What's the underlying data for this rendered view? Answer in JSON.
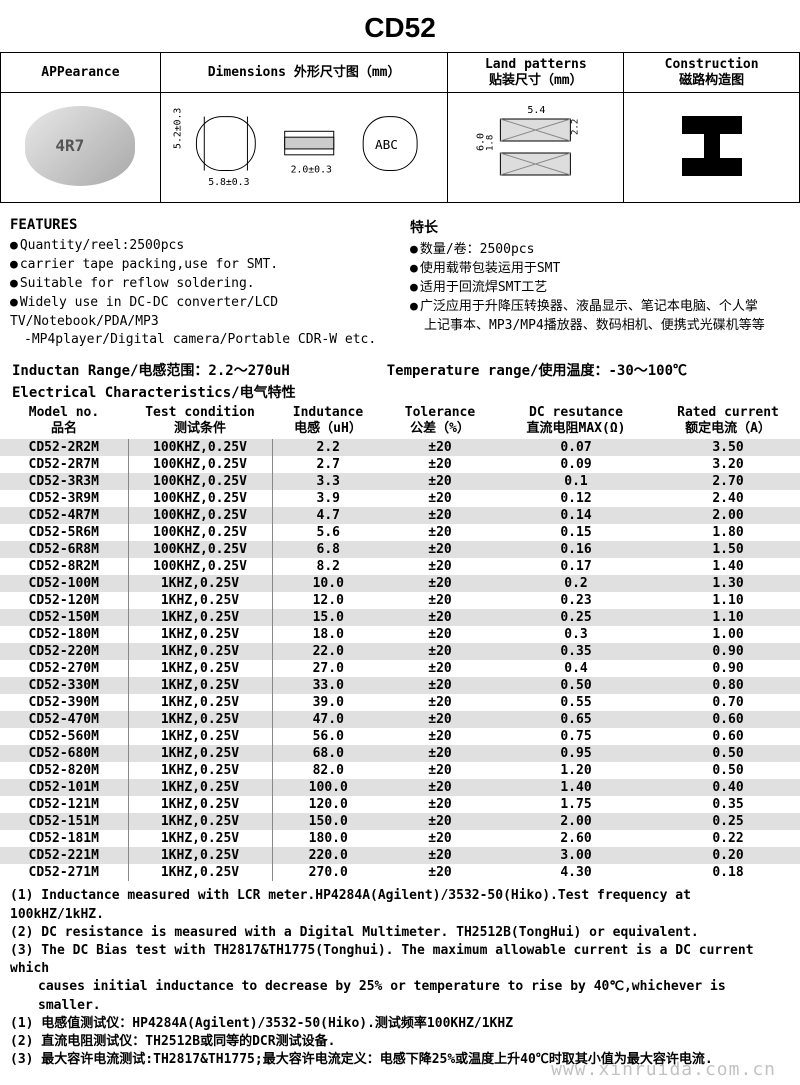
{
  "title": "CD52",
  "top_headers": {
    "appearance": "APPearance",
    "dimensions": "Dimensions 外形尺寸图（mm）",
    "land": "Land patterns\n贴装尺寸（mm）",
    "construction": "Construction\n磁路构造图"
  },
  "dimensions": {
    "h": "5.2±0.3",
    "w": "5.8±0.3",
    "t": "2.0±0.3",
    "mark": "ABC"
  },
  "land": {
    "w": "5.4",
    "h": "6.0",
    "gap": "1.8",
    "pad": "2.2"
  },
  "features": {
    "heading_en": "FEATURES",
    "heading_cn": "特长",
    "en": [
      {
        "t": "Quantity/reel:2500pcs",
        "b": true
      },
      {
        "t": "carrier tape packing,use for SMT.",
        "b": true
      },
      {
        "t": "Suitable for reflow soldering.",
        "b": true
      },
      {
        "t": "Widely use in DC-DC converter/LCD TV/Notebook/PDA/MP3",
        "b": true
      },
      {
        "t": "-MP4player/Digital camera/Portable CDR-W etc.",
        "b": false
      }
    ],
    "cn": [
      {
        "t": "数量/卷：2500pcs",
        "b": true
      },
      {
        "t": "使用载带包装运用于SMT",
        "b": true
      },
      {
        "t": "适用于回流焊SMT工艺",
        "b": true
      },
      {
        "t": "广泛应用于升降压转换器、液晶显示、笔记本电脑、个人掌",
        "b": true
      },
      {
        "t": "上记事本、MP3/MP4播放器、数码相机、便携式光碟机等等",
        "b": false
      }
    ]
  },
  "ranges": {
    "inductance": "Inductan Range/电感范围：2.2～270uH",
    "temperature": "Temperature range/使用温度：-30～100℃"
  },
  "ec_title": "Electrical Characteristics/电气特性",
  "table": {
    "headers": [
      {
        "en": "Model no.",
        "cn": "品名"
      },
      {
        "en": "Test condition",
        "cn": "测试条件"
      },
      {
        "en": "Indutance",
        "cn": "电感（uH）"
      },
      {
        "en": "Tolerance",
        "cn": "公差（%）"
      },
      {
        "en": "DC resutance",
        "cn": "直流电阻MAX(Ω)"
      },
      {
        "en": "Rated current",
        "cn": "额定电流（A）"
      }
    ],
    "rows": [
      [
        "CD52-2R2M",
        "100KHZ,0.25V",
        "2.2",
        "±20",
        "0.07",
        "3.50"
      ],
      [
        "CD52-2R7M",
        "100KHZ,0.25V",
        "2.7",
        "±20",
        "0.09",
        "3.20"
      ],
      [
        "CD52-3R3M",
        "100KHZ,0.25V",
        "3.3",
        "±20",
        "0.1",
        "2.70"
      ],
      [
        "CD52-3R9M",
        "100KHZ,0.25V",
        "3.9",
        "±20",
        "0.12",
        "2.40"
      ],
      [
        "CD52-4R7M",
        "100KHZ,0.25V",
        "4.7",
        "±20",
        "0.14",
        "2.00"
      ],
      [
        "CD52-5R6M",
        "100KHZ,0.25V",
        "5.6",
        "±20",
        "0.15",
        "1.80"
      ],
      [
        "CD52-6R8M",
        "100KHZ,0.25V",
        "6.8",
        "±20",
        "0.16",
        "1.50"
      ],
      [
        "CD52-8R2M",
        "100KHZ,0.25V",
        "8.2",
        "±20",
        "0.17",
        "1.40"
      ],
      [
        "CD52-100M",
        "1KHZ,0.25V",
        "10.0",
        "±20",
        "0.2",
        "1.30"
      ],
      [
        "CD52-120M",
        "1KHZ,0.25V",
        "12.0",
        "±20",
        "0.23",
        "1.10"
      ],
      [
        "CD52-150M",
        "1KHZ,0.25V",
        "15.0",
        "±20",
        "0.25",
        "1.10"
      ],
      [
        "CD52-180M",
        "1KHZ,0.25V",
        "18.0",
        "±20",
        "0.3",
        "1.00"
      ],
      [
        "CD52-220M",
        "1KHZ,0.25V",
        "22.0",
        "±20",
        "0.35",
        "0.90"
      ],
      [
        "CD52-270M",
        "1KHZ,0.25V",
        "27.0",
        "±20",
        "0.4",
        "0.90"
      ],
      [
        "CD52-330M",
        "1KHZ,0.25V",
        "33.0",
        "±20",
        "0.50",
        "0.80"
      ],
      [
        "CD52-390M",
        "1KHZ,0.25V",
        "39.0",
        "±20",
        "0.55",
        "0.70"
      ],
      [
        "CD52-470M",
        "1KHZ,0.25V",
        "47.0",
        "±20",
        "0.65",
        "0.60"
      ],
      [
        "CD52-560M",
        "1KHZ,0.25V",
        "56.0",
        "±20",
        "0.75",
        "0.60"
      ],
      [
        "CD52-680M",
        "1KHZ,0.25V",
        "68.0",
        "±20",
        "0.95",
        "0.50"
      ],
      [
        "CD52-820M",
        "1KHZ,0.25V",
        "82.0",
        "±20",
        "1.20",
        "0.50"
      ],
      [
        "CD52-101M",
        "1KHZ,0.25V",
        "100.0",
        "±20",
        "1.40",
        "0.40"
      ],
      [
        "CD52-121M",
        "1KHZ,0.25V",
        "120.0",
        "±20",
        "1.75",
        "0.35"
      ],
      [
        "CD52-151M",
        "1KHZ,0.25V",
        "150.0",
        "±20",
        "2.00",
        "0.25"
      ],
      [
        "CD52-181M",
        "1KHZ,0.25V",
        "180.0",
        "±20",
        "2.60",
        "0.22"
      ],
      [
        "CD52-221M",
        "1KHZ,0.25V",
        "220.0",
        "±20",
        "3.00",
        "0.20"
      ],
      [
        "CD52-271M",
        "1KHZ,0.25V",
        "270.0",
        "±20",
        "4.30",
        "0.18"
      ]
    ],
    "col_widths": [
      "16%",
      "18%",
      "14%",
      "14%",
      "20%",
      "18%"
    ],
    "stripe_even": "#e0e0e0",
    "stripe_odd": "#ffffff"
  },
  "notes": [
    {
      "t": "(1) Inductance measured with LCR meter.HP4284A(Agilent)/3532-50(Hiko).Test frequency at 100kHZ/1kHZ.",
      "i": false
    },
    {
      "t": "(2) DC resistance is measured with a Digital Multimeter.  TH2512B(TongHui) or equivalent.",
      "i": false
    },
    {
      "t": "(3) The DC Bias test with TH2817&TH1775(Tonghui). The maximum allowable current is a DC current which",
      "i": false
    },
    {
      "t": "causes initial inductance to decrease by 25% or temperature to rise by 40℃,whichever is smaller.",
      "i": true
    },
    {
      "t": "(1) 电感值测试仪：HP4284A(Agilent)/3532-50(Hiko).测试频率100KHZ/1KHZ",
      "i": false
    },
    {
      "t": "(2) 直流电阻测试仪：TH2512B或同等的DCR测试设备.",
      "i": false
    },
    {
      "t": "(3) 最大容许电流测试:TH2817&TH1775;最大容许电流定义：电感下降25%或温度上升40℃时取其小值为最大容许电流.",
      "i": false
    }
  ],
  "watermark": "www.xinruida.com.cn"
}
